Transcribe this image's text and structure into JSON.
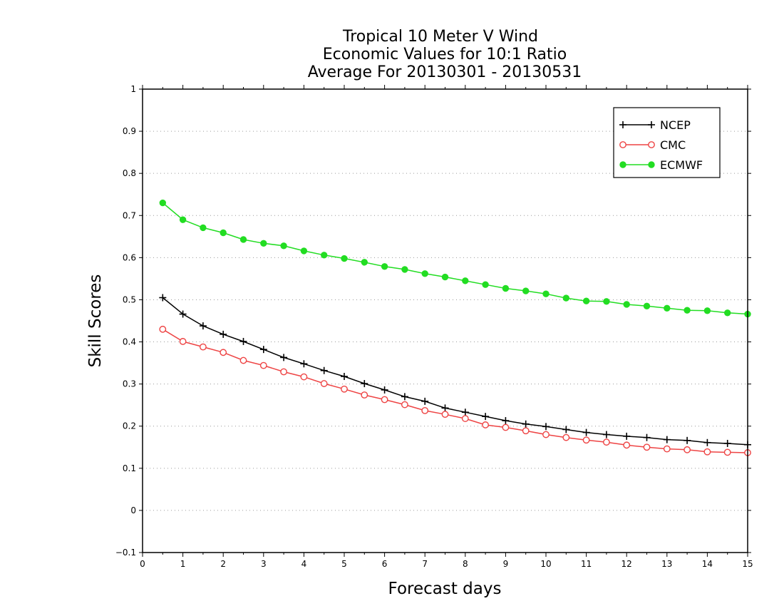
{
  "chart_data": {
    "type": "line",
    "title_lines": [
      "Tropical 10 Meter V Wind",
      "Economic Values for 10:1 Ratio",
      "Average For 20130301 - 20130531"
    ],
    "xlabel": "Forecast days",
    "ylabel": "Skill Scores",
    "xlim": [
      0,
      15
    ],
    "ylim": [
      -0.1,
      1
    ],
    "xticks": [
      "0",
      "1",
      "2",
      "3",
      "4",
      "5",
      "6",
      "7",
      "8",
      "9",
      "10",
      "11",
      "12",
      "13",
      "14",
      "15"
    ],
    "yticks": [
      "−0.1",
      "0",
      "0.1",
      "0.2",
      "0.3",
      "0.4",
      "0.5",
      "0.6",
      "0.7",
      "0.8",
      "0.9",
      "1"
    ],
    "grid": true,
    "legend_position": "top-right",
    "x": [
      0.5,
      1,
      1.5,
      2,
      2.5,
      3,
      3.5,
      4,
      4.5,
      5,
      5.5,
      6,
      6.5,
      7,
      7.5,
      8,
      8.5,
      9,
      9.5,
      10,
      10.5,
      11,
      11.5,
      12,
      12.5,
      13,
      13.5,
      14,
      14.5,
      15
    ],
    "series": [
      {
        "name": "NCEP",
        "color": "#000000",
        "marker": "plus",
        "values": [
          0.505,
          0.466,
          0.438,
          0.418,
          0.401,
          0.382,
          0.363,
          0.348,
          0.332,
          0.318,
          0.301,
          0.286,
          0.27,
          0.259,
          0.243,
          0.233,
          0.223,
          0.213,
          0.205,
          0.199,
          0.192,
          0.185,
          0.18,
          0.176,
          0.173,
          0.168,
          0.166,
          0.161,
          0.159,
          0.156
        ]
      },
      {
        "name": "CMC",
        "color": "#ee4444",
        "marker": "open-circle",
        "values": [
          0.43,
          0.401,
          0.388,
          0.375,
          0.356,
          0.344,
          0.329,
          0.317,
          0.301,
          0.288,
          0.274,
          0.263,
          0.251,
          0.237,
          0.228,
          0.218,
          0.203,
          0.197,
          0.189,
          0.18,
          0.173,
          0.167,
          0.162,
          0.155,
          0.15,
          0.146,
          0.144,
          0.139,
          0.138,
          0.137
        ]
      },
      {
        "name": "ECMWF",
        "color": "#22dd22",
        "marker": "filled-circle",
        "values": [
          0.73,
          0.69,
          0.671,
          0.659,
          0.643,
          0.634,
          0.628,
          0.616,
          0.606,
          0.598,
          0.589,
          0.579,
          0.572,
          0.562,
          0.554,
          0.545,
          0.536,
          0.527,
          0.521,
          0.514,
          0.504,
          0.497,
          0.496,
          0.489,
          0.485,
          0.48,
          0.475,
          0.474,
          0.469,
          0.466
        ]
      }
    ]
  }
}
